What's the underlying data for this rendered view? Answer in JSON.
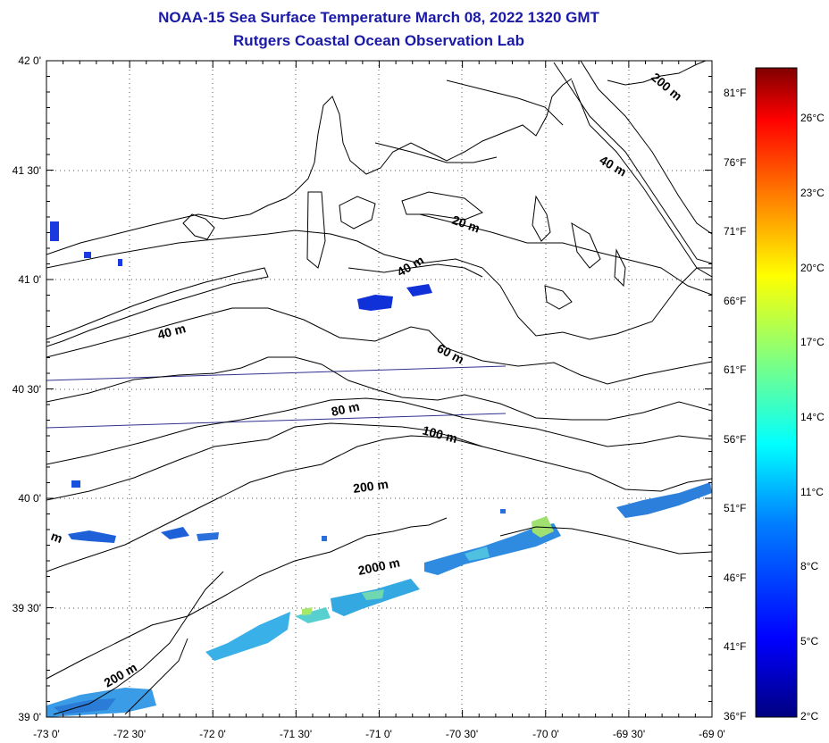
{
  "header": {
    "title": "NOAA-15 Sea Surface Temperature March 08, 2022 1320 GMT",
    "subtitle": "Rutgers Coastal Ocean Observation Lab"
  },
  "axes": {
    "lat_labels": [
      "42 0'",
      "41 30'",
      "41 0'",
      "40 30'",
      "40 0'",
      "39 30'",
      "39 0'"
    ],
    "lon_labels": [
      "-73 0'",
      "-72 30'",
      "-72 0'",
      "-71 30'",
      "-71 0'",
      "-70 30'",
      "-70 0'",
      "-69 30'",
      "-69 0'"
    ],
    "fahrenheit_labels": [
      "81°F",
      "76°F",
      "71°F",
      "66°F",
      "61°F",
      "56°F",
      "51°F",
      "46°F",
      "41°F",
      "36°F"
    ]
  },
  "colorbar": {
    "celsius_labels": [
      "26°C",
      "23°C",
      "20°C",
      "17°C",
      "14°C",
      "11°C",
      "8°C",
      "5°C",
      "2°C"
    ],
    "colors": [
      "#800000",
      "#ff0000",
      "#ff8000",
      "#ffff00",
      "#80ff80",
      "#00ffff",
      "#0080ff",
      "#0000ff",
      "#000080"
    ]
  },
  "contours": {
    "labels": [
      "200 m",
      "40 m",
      "20 m",
      "40 m",
      "40 m",
      "60 m",
      "80 m",
      "100 m",
      "200 m",
      "2000 m",
      "200 m",
      "m"
    ]
  },
  "colors": {
    "title": "#1a1aa6",
    "contour": "#000000",
    "grid": "#555555"
  }
}
